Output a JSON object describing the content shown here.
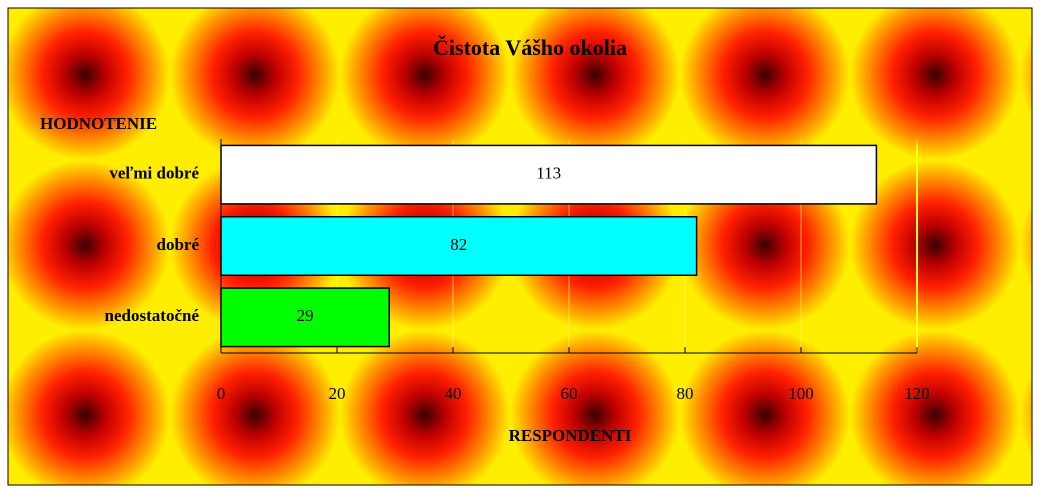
{
  "chart_data": {
    "type": "bar",
    "orientation": "horizontal",
    "title": "Čistota Vášho okolia",
    "y_label": "HODNOTENIE",
    "x_label": "RESPONDENTI",
    "categories": [
      "veľmi dobré",
      "dobré",
      "nedostatočné"
    ],
    "values": [
      113,
      82,
      29
    ],
    "colors": [
      "#ffffff",
      "#00ffff",
      "#00ff00"
    ],
    "xlim": [
      0,
      120
    ],
    "xticks": [
      0,
      20,
      40,
      60,
      80,
      100,
      120
    ],
    "grid": true
  }
}
